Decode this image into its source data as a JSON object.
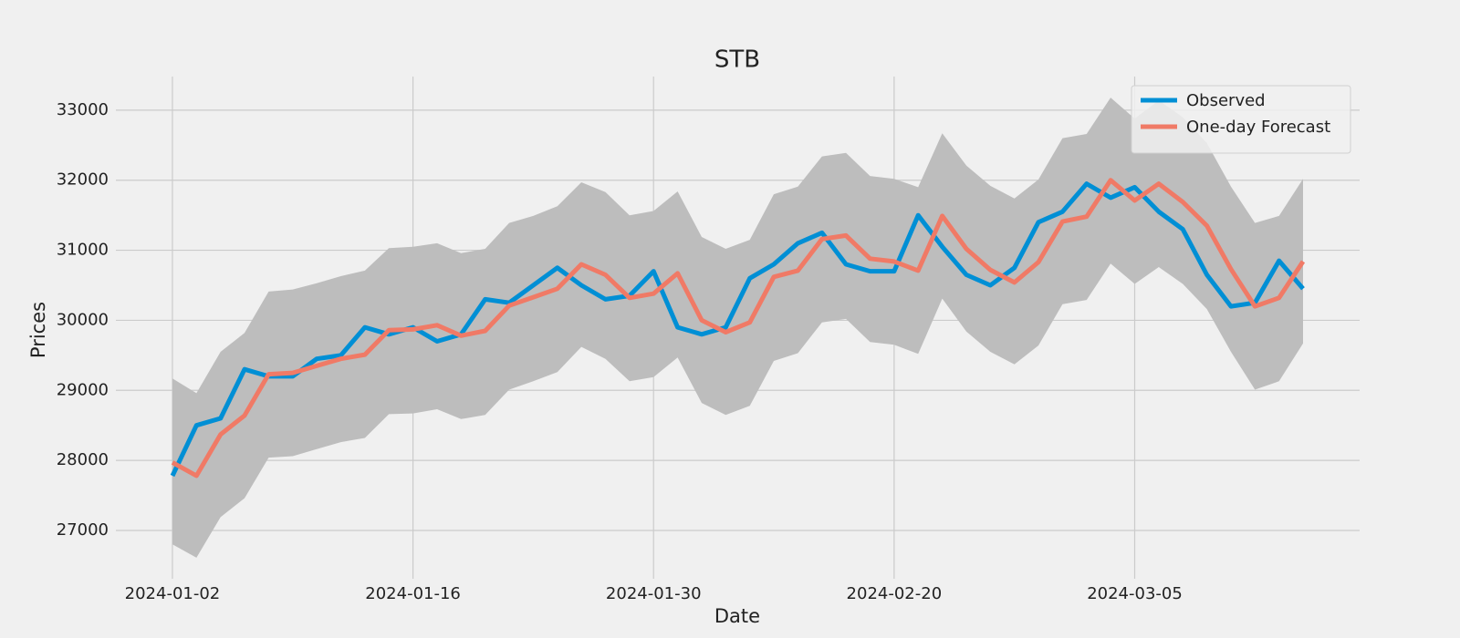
{
  "chart_data": {
    "type": "line",
    "title": "STB",
    "x_label": "Date",
    "y_label": "Prices",
    "categories": [
      "2024-01-02",
      null,
      null,
      null,
      null,
      null,
      null,
      null,
      null,
      null,
      "2024-01-16",
      null,
      null,
      null,
      null,
      null,
      null,
      null,
      null,
      null,
      "2024-01-30",
      null,
      null,
      null,
      null,
      null,
      null,
      null,
      null,
      null,
      "2024-02-20",
      null,
      null,
      null,
      null,
      null,
      null,
      null,
      null,
      null,
      "2024-03-05",
      null,
      null,
      null,
      null,
      null,
      null,
      null
    ],
    "series": [
      {
        "name": "Observed",
        "color": "#008fd5",
        "values": [
          27780,
          28500,
          28600,
          29300,
          29200,
          29200,
          29450,
          29500,
          29900,
          29800,
          29900,
          29700,
          29800,
          30300,
          30250,
          30500,
          30750,
          30500,
          30300,
          30350,
          30700,
          29900,
          29800,
          29900,
          30600,
          30800,
          31100,
          31250,
          30800,
          30700,
          30700,
          31500,
          31050,
          30650,
          30500,
          30750,
          31400,
          31550,
          31950,
          31750,
          31900,
          31550,
          31300,
          30650,
          30200,
          30250,
          30850,
          30450
        ]
      },
      {
        "name": "One-day Forecast",
        "color": "#f07a66",
        "values": [
          27970,
          27780,
          28370,
          28640,
          29230,
          29250,
          29350,
          29450,
          29510,
          29860,
          29870,
          29930,
          29780,
          29850,
          30210,
          30330,
          30450,
          30800,
          30650,
          30320,
          30380,
          30670,
          30000,
          29830,
          29970,
          30620,
          30710,
          31160,
          31210,
          30880,
          30840,
          30710,
          31490,
          31020,
          30720,
          30540,
          30830,
          31410,
          31480,
          32000,
          31710,
          31950,
          31690,
          31350,
          30730,
          30200,
          30320,
          30840
        ]
      }
    ],
    "band": {
      "color": "#bdbdbd",
      "upper": [
        29170,
        28960,
        29550,
        29820,
        30410,
        30440,
        30530,
        30630,
        30710,
        31030,
        31050,
        31100,
        30960,
        31020,
        31390,
        31490,
        31630,
        31970,
        31830,
        31500,
        31560,
        31840,
        31190,
        31020,
        31150,
        31800,
        31910,
        32340,
        32390,
        32060,
        32020,
        31900,
        32670,
        32210,
        31920,
        31740,
        32010,
        32600,
        32660,
        33180,
        32880,
        33140,
        32900,
        32530,
        31910,
        31390,
        31490,
        32020
      ],
      "lower": [
        26800,
        26610,
        27190,
        27460,
        28040,
        28060,
        28160,
        28260,
        28320,
        28660,
        28670,
        28730,
        28590,
        28650,
        29010,
        29130,
        29260,
        29620,
        29450,
        29130,
        29190,
        29470,
        28820,
        28650,
        28780,
        29420,
        29530,
        29970,
        30020,
        29690,
        29650,
        29520,
        30310,
        29840,
        29550,
        29370,
        29640,
        30230,
        30290,
        30810,
        30520,
        30760,
        30520,
        30160,
        29550,
        29010,
        29130,
        29670
      ]
    },
    "ylim": [
      26310,
      33480
    ],
    "yticks": [
      27000,
      28000,
      29000,
      30000,
      31000,
      32000,
      33000
    ],
    "grid": true,
    "legend": "upper right"
  }
}
